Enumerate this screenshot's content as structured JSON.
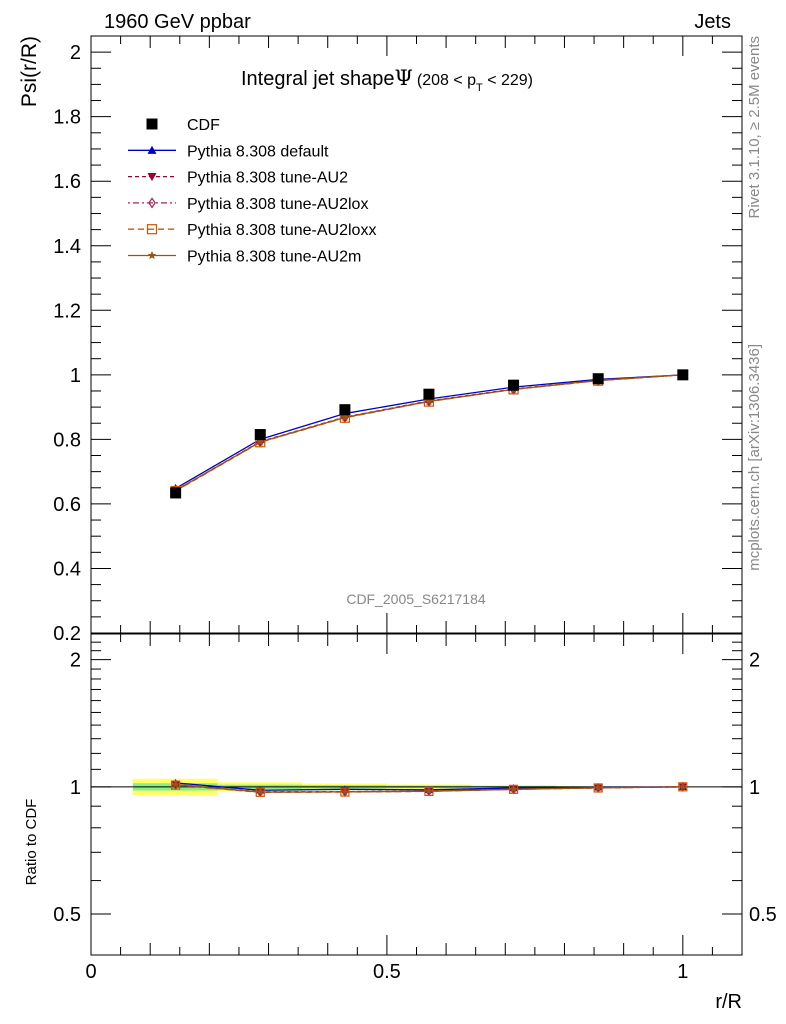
{
  "header": {
    "energy_label": "1960 GeV ppbar",
    "process_label": "Jets"
  },
  "side_labels": {
    "rivet": "Rivet 3.1.10, ≥ 2.5M events",
    "mcplots": "mcplots.cern.ch [arXiv:1306.3436]"
  },
  "watermark": "CDF_2005_S6217184",
  "chart_data": {
    "type": "line",
    "title": {
      "main": "Integral jet shape",
      "symbol": "Ψ",
      "range_open": "(208 < p",
      "range_sub": "T",
      "range_close": " < 229)"
    },
    "xlabel": "r/R",
    "ylabel": "Psi(r/R)",
    "ratio_ylabel": "Ratio to CDF",
    "xlim": [
      0,
      1.1
    ],
    "ylim": [
      0.2,
      2.05
    ],
    "ratio_ylim": [
      0.4,
      2.3
    ],
    "x_ticks": [
      "0",
      "0.5",
      "1"
    ],
    "y_ticks": [
      "0.2",
      "0.4",
      "0.6",
      "0.8",
      "1",
      "1.2",
      "1.4",
      "1.6",
      "1.8",
      "2"
    ],
    "ratio_y_ticks": [
      "0.5",
      "1",
      "2"
    ],
    "x": [
      0.143,
      0.286,
      0.429,
      0.571,
      0.714,
      0.857,
      1.0
    ],
    "series": [
      {
        "name": "CDF",
        "color": "#000000",
        "marker": "square",
        "values": [
          0.634,
          0.815,
          0.892,
          0.94,
          0.968,
          0.988,
          1.0
        ]
      },
      {
        "name": "Pythia 8.308 default",
        "color": "#0000cc",
        "marker": "triangle-up",
        "values": [
          0.648,
          0.8,
          0.88,
          0.925,
          0.962,
          0.986,
          1.0
        ]
      },
      {
        "name": "Pythia 8.308 tune-AU2",
        "color": "#990033",
        "marker": "triangle-down",
        "values": [
          0.642,
          0.793,
          0.869,
          0.919,
          0.956,
          0.983,
          1.0
        ]
      },
      {
        "name": "Pythia 8.308 tune-AU2lox",
        "color": "#aa2255",
        "marker": "diamond-open",
        "values": [
          0.641,
          0.792,
          0.868,
          0.918,
          0.955,
          0.982,
          1.0
        ]
      },
      {
        "name": "Pythia 8.308 tune-AU2loxx",
        "color": "#cc5500",
        "marker": "square-open",
        "values": [
          0.64,
          0.791,
          0.867,
          0.917,
          0.955,
          0.982,
          1.0
        ]
      },
      {
        "name": "Pythia 8.308 tune-AU2m",
        "color": "#995511",
        "marker": "star",
        "values": [
          0.642,
          0.792,
          0.868,
          0.918,
          0.955,
          0.983,
          1.0
        ]
      }
    ],
    "ratio_band": {
      "x_edges": [
        0.071,
        0.214,
        0.357,
        0.5,
        0.643,
        0.786,
        0.929,
        1.071
      ],
      "inner": [
        0.02,
        0.012,
        0.009,
        0.007,
        0.005,
        0.003,
        0.001
      ],
      "outer": [
        0.045,
        0.025,
        0.018,
        0.013,
        0.009,
        0.005,
        0.002
      ]
    },
    "legend_position": "top-left",
    "grid": false
  }
}
